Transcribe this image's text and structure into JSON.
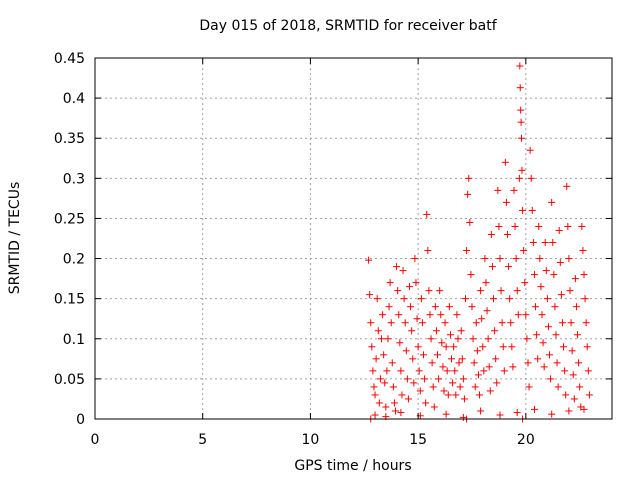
{
  "chart_data": {
    "type": "scatter",
    "title": "Day 015 of 2018, SRMTID for receiver batf",
    "xlabel": "GPS time / hours",
    "ylabel": "SRMTID / TECUs",
    "xlim": [
      0,
      24
    ],
    "ylim": [
      0,
      0.45
    ],
    "xticks": [
      0,
      5,
      10,
      15,
      20
    ],
    "xtick_labels": [
      "0",
      "5",
      "10",
      "15",
      "20"
    ],
    "yticks": [
      0,
      0.05,
      0.1,
      0.15,
      0.2,
      0.25,
      0.3,
      0.35,
      0.4,
      0.45
    ],
    "ytick_labels": [
      "0",
      "0.05",
      "0.1",
      "0.15",
      "0.2",
      "0.25",
      "0.3",
      "0.35",
      "0.4",
      "0.45"
    ],
    "grid": true,
    "marker": "+",
    "color": "#ff0000",
    "series": [
      {
        "name": "SRMTID",
        "points": [
          [
            12.7,
            0.198
          ],
          [
            12.75,
            0.155
          ],
          [
            12.8,
            0.12
          ],
          [
            12.85,
            0.09
          ],
          [
            12.9,
            0.06
          ],
          [
            12.95,
            0.04
          ],
          [
            13.0,
            0.03
          ],
          [
            13.05,
            0.075
          ],
          [
            13.1,
            0.15
          ],
          [
            13.15,
            0.11
          ],
          [
            13.2,
            0.02
          ],
          [
            13.25,
            0.05
          ],
          [
            13.3,
            0.1
          ],
          [
            13.35,
            0.13
          ],
          [
            13.4,
            0.08
          ],
          [
            13.45,
            0.045
          ],
          [
            13.5,
            0.015
          ],
          [
            13.55,
            0.06
          ],
          [
            13.6,
            0.1
          ],
          [
            13.65,
            0.14
          ],
          [
            13.7,
            0.17
          ],
          [
            13.75,
            0.12
          ],
          [
            13.8,
            0.07
          ],
          [
            13.85,
            0.04
          ],
          [
            13.9,
            0.02
          ],
          [
            13.95,
            0.01
          ],
          [
            14.0,
            0.19
          ],
          [
            14.05,
            0.16
          ],
          [
            14.1,
            0.13
          ],
          [
            14.15,
            0.095
          ],
          [
            14.2,
            0.06
          ],
          [
            14.25,
            0.03
          ],
          [
            14.3,
            0.185
          ],
          [
            14.35,
            0.15
          ],
          [
            14.4,
            0.12
          ],
          [
            14.45,
            0.085
          ],
          [
            14.5,
            0.05
          ],
          [
            14.55,
            0.025
          ],
          [
            14.6,
            0.165
          ],
          [
            14.65,
            0.14
          ],
          [
            14.7,
            0.11
          ],
          [
            14.75,
            0.075
          ],
          [
            14.8,
            0.045
          ],
          [
            14.85,
            0.2
          ],
          [
            14.9,
            0.17
          ],
          [
            14.95,
            0.125
          ],
          [
            15.0,
            0.09
          ],
          [
            15.05,
            0.06
          ],
          [
            15.1,
            0.035
          ],
          [
            15.15,
            0.15
          ],
          [
            15.2,
            0.12
          ],
          [
            15.25,
            0.08
          ],
          [
            15.3,
            0.05
          ],
          [
            15.35,
            0.02
          ],
          [
            15.4,
            0.255
          ],
          [
            15.45,
            0.21
          ],
          [
            15.5,
            0.16
          ],
          [
            15.55,
            0.13
          ],
          [
            15.6,
            0.1
          ],
          [
            15.65,
            0.07
          ],
          [
            15.7,
            0.04
          ],
          [
            15.75,
            0.015
          ],
          [
            15.8,
            0.14
          ],
          [
            15.85,
            0.11
          ],
          [
            15.9,
            0.08
          ],
          [
            15.95,
            0.05
          ],
          [
            16.0,
            0.16
          ],
          [
            16.05,
            0.13
          ],
          [
            16.1,
            0.095
          ],
          [
            16.15,
            0.065
          ],
          [
            16.2,
            0.035
          ],
          [
            16.25,
            0.12
          ],
          [
            16.3,
            0.09
          ],
          [
            16.35,
            0.06
          ],
          [
            16.4,
            0.03
          ],
          [
            16.45,
            0.14
          ],
          [
            16.5,
            0.105
          ],
          [
            16.55,
            0.075
          ],
          [
            16.6,
            0.045
          ],
          [
            16.65,
            0.09
          ],
          [
            16.7,
            0.06
          ],
          [
            16.75,
            0.03
          ],
          [
            16.8,
            0.13
          ],
          [
            16.85,
            0.1
          ],
          [
            16.9,
            0.07
          ],
          [
            16.95,
            0.04
          ],
          [
            17.0,
            0.11
          ],
          [
            17.05,
            0.075
          ],
          [
            17.1,
            0.05
          ],
          [
            17.15,
            0.025
          ],
          [
            17.2,
            0.15
          ],
          [
            17.25,
            0.21
          ],
          [
            17.3,
            0.28
          ],
          [
            17.35,
            0.3
          ],
          [
            17.4,
            0.245
          ],
          [
            17.45,
            0.18
          ],
          [
            17.5,
            0.14
          ],
          [
            17.55,
            0.1
          ],
          [
            17.6,
            0.07
          ],
          [
            17.65,
            0.04
          ],
          [
            17.7,
            0.12
          ],
          [
            17.75,
            0.085
          ],
          [
            17.8,
            0.055
          ],
          [
            17.85,
            0.03
          ],
          [
            17.9,
            0.16
          ],
          [
            17.95,
            0.125
          ],
          [
            18.0,
            0.09
          ],
          [
            18.05,
            0.06
          ],
          [
            18.1,
            0.2
          ],
          [
            18.15,
            0.17
          ],
          [
            18.2,
            0.135
          ],
          [
            18.25,
            0.1
          ],
          [
            18.3,
            0.065
          ],
          [
            18.35,
            0.035
          ],
          [
            18.4,
            0.23
          ],
          [
            18.45,
            0.19
          ],
          [
            18.5,
            0.15
          ],
          [
            18.55,
            0.11
          ],
          [
            18.6,
            0.075
          ],
          [
            18.65,
            0.045
          ],
          [
            18.7,
            0.285
          ],
          [
            18.75,
            0.24
          ],
          [
            18.8,
            0.2
          ],
          [
            18.85,
            0.16
          ],
          [
            18.9,
            0.12
          ],
          [
            18.95,
            0.09
          ],
          [
            19.0,
            0.06
          ],
          [
            19.05,
            0.32
          ],
          [
            19.1,
            0.27
          ],
          [
            19.15,
            0.23
          ],
          [
            19.2,
            0.19
          ],
          [
            19.25,
            0.15
          ],
          [
            19.3,
            0.12
          ],
          [
            19.35,
            0.09
          ],
          [
            19.4,
            0.065
          ],
          [
            19.45,
            0.285
          ],
          [
            19.5,
            0.24
          ],
          [
            19.55,
            0.2
          ],
          [
            19.6,
            0.16
          ],
          [
            19.65,
            0.13
          ],
          [
            19.7,
            0.3
          ],
          [
            19.72,
            0.44
          ],
          [
            19.74,
            0.413
          ],
          [
            19.76,
            0.385
          ],
          [
            19.78,
            0.37
          ],
          [
            19.8,
            0.35
          ],
          [
            19.82,
            0.31
          ],
          [
            19.85,
            0.26
          ],
          [
            19.9,
            0.21
          ],
          [
            19.95,
            0.17
          ],
          [
            20.0,
            0.13
          ],
          [
            20.05,
            0.1
          ],
          [
            20.1,
            0.07
          ],
          [
            20.15,
            0.04
          ],
          [
            20.2,
            0.335
          ],
          [
            20.25,
            0.3
          ],
          [
            20.3,
            0.26
          ],
          [
            20.35,
            0.22
          ],
          [
            20.4,
            0.18
          ],
          [
            20.45,
            0.14
          ],
          [
            20.5,
            0.105
          ],
          [
            20.55,
            0.075
          ],
          [
            20.6,
            0.24
          ],
          [
            20.65,
            0.2
          ],
          [
            20.7,
            0.165
          ],
          [
            20.75,
            0.13
          ],
          [
            20.8,
            0.095
          ],
          [
            20.85,
            0.065
          ],
          [
            20.9,
            0.22
          ],
          [
            20.95,
            0.185
          ],
          [
            21.0,
            0.15
          ],
          [
            21.05,
            0.115
          ],
          [
            21.1,
            0.08
          ],
          [
            21.15,
            0.05
          ],
          [
            21.2,
            0.27
          ],
          [
            21.25,
            0.22
          ],
          [
            21.3,
            0.18
          ],
          [
            21.35,
            0.14
          ],
          [
            21.4,
            0.105
          ],
          [
            21.45,
            0.07
          ],
          [
            21.5,
            0.04
          ],
          [
            21.55,
            0.235
          ],
          [
            21.6,
            0.195
          ],
          [
            21.65,
            0.155
          ],
          [
            21.7,
            0.12
          ],
          [
            21.75,
            0.09
          ],
          [
            21.8,
            0.06
          ],
          [
            21.85,
            0.03
          ],
          [
            21.9,
            0.29
          ],
          [
            21.95,
            0.24
          ],
          [
            22.0,
            0.2
          ],
          [
            22.05,
            0.16
          ],
          [
            22.1,
            0.12
          ],
          [
            22.15,
            0.085
          ],
          [
            22.2,
            0.055
          ],
          [
            22.25,
            0.025
          ],
          [
            22.3,
            0.175
          ],
          [
            22.35,
            0.14
          ],
          [
            22.4,
            0.105
          ],
          [
            22.45,
            0.07
          ],
          [
            22.5,
            0.04
          ],
          [
            22.55,
            0.015
          ],
          [
            22.6,
            0.24
          ],
          [
            22.65,
            0.21
          ],
          [
            22.7,
            0.18
          ],
          [
            22.75,
            0.15
          ],
          [
            22.8,
            0.12
          ],
          [
            22.85,
            0.09
          ],
          [
            22.9,
            0.06
          ],
          [
            22.95,
            0.03
          ],
          [
            13.0,
            0.005
          ],
          [
            13.5,
            0.003
          ],
          [
            14.2,
            0.008
          ],
          [
            15.1,
            0.004
          ],
          [
            16.3,
            0.006
          ],
          [
            17.1,
            0.002
          ],
          [
            17.9,
            0.01
          ],
          [
            18.8,
            0.005
          ],
          [
            19.6,
            0.008
          ],
          [
            20.4,
            0.012
          ],
          [
            21.2,
            0.006
          ],
          [
            22.0,
            0.01
          ],
          [
            22.7,
            0.012
          ],
          [
            12.8,
            0.0
          ],
          [
            17.25,
            0.0
          ],
          [
            19.85,
            0.0
          ]
        ]
      }
    ]
  }
}
